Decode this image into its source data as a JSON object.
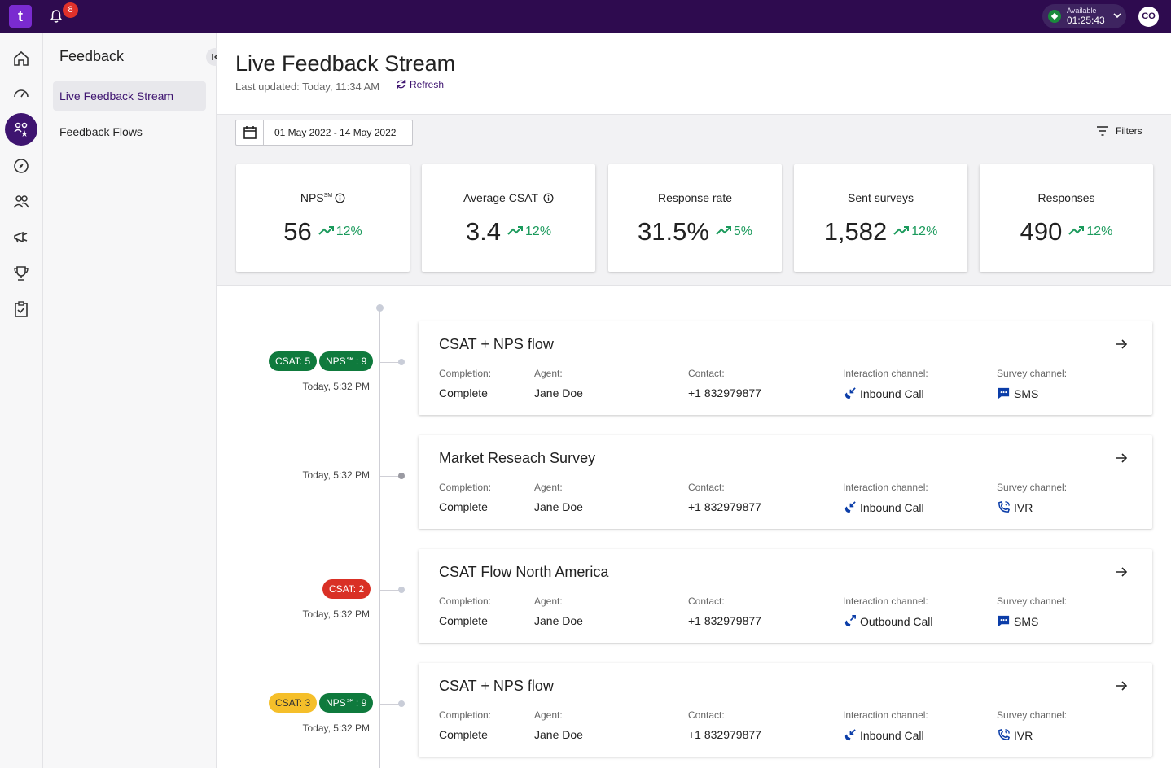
{
  "topbar": {
    "logo_letter": "t",
    "notification_count": "8",
    "status_label": "Available",
    "status_time": "01:25:43",
    "avatar_initials": "CO"
  },
  "rail": {
    "items": [
      "home-icon",
      "dashboard-gauge-icon",
      "feedback-people-icon",
      "compass-icon",
      "team-icon",
      "megaphone-icon",
      "trophy-icon",
      "clipboard-check-icon"
    ],
    "active": "feedback-people-icon"
  },
  "sidebar": {
    "title": "Feedback",
    "items": [
      {
        "label": "Live Feedback Stream",
        "active": true
      },
      {
        "label": "Feedback Flows",
        "active": false
      }
    ]
  },
  "header": {
    "title": "Live Feedback Stream",
    "last_updated": "Last updated: Today, 11:34 AM",
    "refresh_label": "Refresh"
  },
  "filterbar": {
    "date_range": "01 May 2022 - 14 May 2022",
    "filters_label": "Filters"
  },
  "kpis": [
    {
      "label": "NPS",
      "sup": "SM",
      "value": "56",
      "trend": "12%",
      "info": true
    },
    {
      "label": "Average CSAT",
      "value": "3.4",
      "trend": "12%",
      "info": true
    },
    {
      "label": "Response rate",
      "value": "31.5%",
      "trend": "5%",
      "info": false
    },
    {
      "label": "Sent surveys",
      "value": "1,582",
      "trend": "12%",
      "info": false
    },
    {
      "label": "Responses",
      "value": "490",
      "trend": "12%",
      "info": false
    }
  ],
  "columns": {
    "completion": "Completion:",
    "agent": "Agent:",
    "contact": "Contact:",
    "interaction_channel": "Interaction channel:",
    "survey_channel": "Survey channel:"
  },
  "colors": {
    "brand": "#2e0b4f",
    "accent": "#3e1470",
    "trend_up": "#1b9a5c",
    "score_green": "#0f7a3d",
    "score_red": "#d93025",
    "score_yellow": "#f5bf2a"
  },
  "feed": [
    {
      "title": "CSAT + NPS flow",
      "time": "Today, 5:32 PM",
      "scores": [
        {
          "text": "CSAT: 5",
          "color": "green"
        },
        {
          "text": "NPS℠: 9",
          "color": "green"
        }
      ],
      "completion": "Complete",
      "agent": "Jane Doe",
      "contact": "+1 832979877",
      "interaction_channel": "Inbound Call",
      "interaction_icon": "inbound-call-icon",
      "survey_channel": "SMS",
      "survey_icon": "sms-icon"
    },
    {
      "title": "Market Reseach Survey",
      "time": "Today, 5:32 PM",
      "scores": [],
      "completion": "Complete",
      "agent": "Jane Doe",
      "contact": "+1 832979877",
      "interaction_channel": "Inbound Call",
      "interaction_icon": "inbound-call-icon",
      "survey_channel": "IVR",
      "survey_icon": "ivr-phone-icon"
    },
    {
      "title": "CSAT Flow North America",
      "time": "Today, 5:32 PM",
      "scores": [
        {
          "text": "CSAT: 2",
          "color": "red"
        }
      ],
      "completion": "Complete",
      "agent": "Jane Doe",
      "contact": "+1 832979877",
      "interaction_channel": "Outbound Call",
      "interaction_icon": "outbound-call-icon",
      "survey_channel": "SMS",
      "survey_icon": "sms-icon"
    },
    {
      "title": "CSAT + NPS flow",
      "time": "Today, 5:32 PM",
      "scores": [
        {
          "text": "CSAT: 3",
          "color": "yellow"
        },
        {
          "text": "NPS℠: 9",
          "color": "green"
        }
      ],
      "completion": "Complete",
      "agent": "Jane Doe",
      "contact": "+1 832979877",
      "interaction_channel": "Inbound Call",
      "interaction_icon": "inbound-call-icon",
      "survey_channel": "IVR",
      "survey_icon": "ivr-phone-icon"
    }
  ]
}
